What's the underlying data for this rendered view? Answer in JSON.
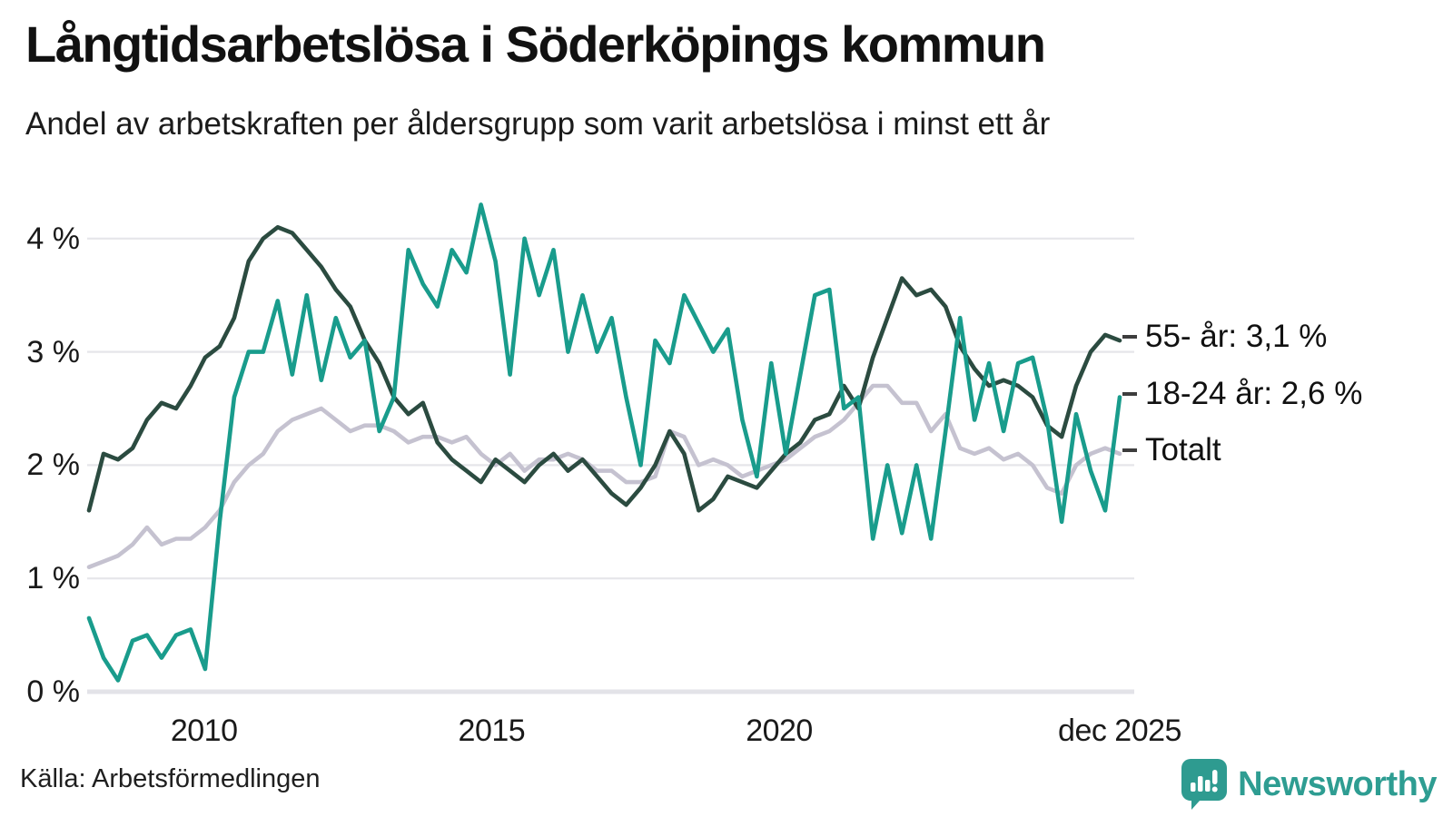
{
  "header": {
    "title": "Långtidsarbetslösa i Söderköpings kommun",
    "subtitle": "Andel av arbetskraften per åldersgrupp som varit arbetslösa i minst ett år"
  },
  "footer": {
    "source": "Källa: Arbetsförmedlingen",
    "brand": "Newsworthy"
  },
  "colors": {
    "series_55": "#2B4B40",
    "series_18_24": "#199C8C",
    "series_total": "#C5C2D0",
    "grid": "#E6E6EA",
    "zero_line": "#E3E3E8",
    "text": "#1a1a1a",
    "brand_teal": "#2E9D92"
  },
  "chart_data": {
    "type": "line",
    "title": "Långtidsarbetslösa i Söderköpings kommun",
    "subtitle": "Andel av arbetskraften per åldersgrupp som varit arbetslösa i minst ett år",
    "unit": "% av arbetskraften",
    "x_start_year": 2008,
    "x_end_year": 2025.92,
    "x_resolution": "quarter",
    "ylim": [
      0,
      4.4
    ],
    "grid": true,
    "legend_position": "right-end-labels",
    "x_ticks": [
      {
        "label": "2010",
        "year": 2010
      },
      {
        "label": "2015",
        "year": 2015
      },
      {
        "label": "2020",
        "year": 2020
      },
      {
        "label": "dec 2025",
        "year": 2025.92
      }
    ],
    "y_ticks": [
      {
        "label": "0 %",
        "value": 0
      },
      {
        "label": "1 %",
        "value": 1
      },
      {
        "label": "2 %",
        "value": 2
      },
      {
        "label": "3 %",
        "value": 3
      },
      {
        "label": "4 %",
        "value": 4
      }
    ],
    "draw_order": [
      2,
      0,
      1
    ],
    "series": [
      {
        "name": "55- år",
        "end_label": "55- år: 3,1 %",
        "end_value": "3,1 %",
        "color": "#2B4B40",
        "values": [
          1.6,
          2.1,
          2.05,
          2.15,
          2.4,
          2.55,
          2.5,
          2.7,
          2.95,
          3.05,
          3.3,
          3.8,
          4.0,
          4.1,
          4.05,
          3.9,
          3.75,
          3.55,
          3.4,
          3.1,
          2.9,
          2.6,
          2.45,
          2.55,
          2.2,
          2.05,
          1.95,
          1.85,
          2.05,
          1.95,
          1.85,
          2.0,
          2.1,
          1.95,
          2.05,
          1.9,
          1.75,
          1.65,
          1.8,
          2.0,
          2.3,
          2.1,
          1.6,
          1.7,
          1.9,
          1.85,
          1.8,
          1.95,
          2.1,
          2.2,
          2.4,
          2.45,
          2.7,
          2.5,
          2.95,
          3.3,
          3.65,
          3.5,
          3.55,
          3.4,
          3.05,
          2.85,
          2.7,
          2.75,
          2.7,
          2.6,
          2.35,
          2.25,
          2.7,
          3.0,
          3.15,
          3.1
        ]
      },
      {
        "name": "18-24 år",
        "end_label": "18-24 år: 2,6 %",
        "end_value": "2,6 %",
        "color": "#199C8C",
        "values": [
          0.65,
          0.3,
          0.1,
          0.45,
          0.5,
          0.3,
          0.5,
          0.55,
          0.2,
          1.5,
          2.6,
          3.0,
          3.0,
          3.45,
          2.8,
          3.5,
          2.75,
          3.3,
          2.95,
          3.1,
          2.3,
          2.6,
          3.9,
          3.6,
          3.4,
          3.9,
          3.7,
          4.3,
          3.8,
          2.8,
          4.0,
          3.5,
          3.9,
          3.0,
          3.5,
          3.0,
          3.3,
          2.6,
          2.0,
          3.1,
          2.9,
          3.5,
          3.25,
          3.0,
          3.2,
          2.4,
          1.9,
          2.9,
          2.1,
          2.8,
          3.5,
          3.55,
          2.5,
          2.6,
          1.35,
          2.0,
          1.4,
          2.0,
          1.35,
          2.3,
          3.3,
          2.4,
          2.9,
          2.3,
          2.9,
          2.95,
          2.4,
          1.5,
          2.45,
          1.95,
          1.6,
          2.6
        ]
      },
      {
        "name": "Totalt",
        "end_label": "Totalt",
        "end_value": "2,1 %",
        "color": "#C5C2D0",
        "values": [
          1.1,
          1.15,
          1.2,
          1.3,
          1.45,
          1.3,
          1.35,
          1.35,
          1.45,
          1.6,
          1.85,
          2.0,
          2.1,
          2.3,
          2.4,
          2.45,
          2.5,
          2.4,
          2.3,
          2.35,
          2.35,
          2.3,
          2.2,
          2.25,
          2.25,
          2.2,
          2.25,
          2.1,
          2.0,
          2.1,
          1.95,
          2.05,
          2.05,
          2.1,
          2.05,
          1.95,
          1.95,
          1.85,
          1.85,
          1.9,
          2.3,
          2.25,
          2.0,
          2.05,
          2.0,
          1.9,
          1.95,
          2.0,
          2.05,
          2.15,
          2.25,
          2.3,
          2.4,
          2.55,
          2.7,
          2.7,
          2.55,
          2.55,
          2.3,
          2.45,
          2.15,
          2.1,
          2.15,
          2.05,
          2.1,
          2.0,
          1.8,
          1.75,
          2.0,
          2.1,
          2.15,
          2.1
        ]
      }
    ]
  }
}
